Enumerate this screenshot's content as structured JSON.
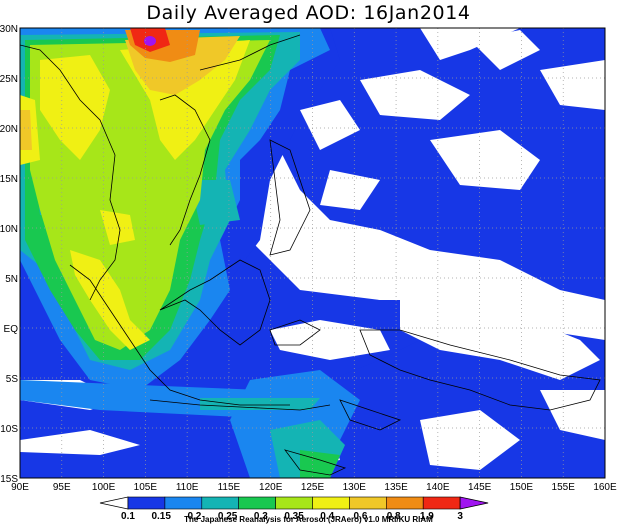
{
  "title": "Daily Averaged AOD: 16Jan2014",
  "credit": "The Japanese Reanalysis for Aerosol (JRAero) v1.0 MRI/KU RIAM",
  "map": {
    "lon_labels": [
      "90E",
      "95E",
      "100E",
      "105E",
      "110E",
      "115E",
      "120E",
      "125E",
      "130E",
      "135E",
      "140E",
      "145E",
      "150E",
      "155E",
      "160E"
    ],
    "lat_labels": [
      "30N",
      "25N",
      "20N",
      "15N",
      "10N",
      "5N",
      "EQ",
      "5S",
      "10S",
      "15S"
    ]
  },
  "colorbar": {
    "labels": [
      "0.1",
      "0.15",
      "0.2",
      "0.25",
      "0.3",
      "0.35",
      "0.4",
      "0.6",
      "0.8",
      "1.9",
      "3"
    ],
    "colors": [
      "#ffffff",
      "#1737e6",
      "#1a86f0",
      "#14b4b4",
      "#19c850",
      "#a7e619",
      "#f0f014",
      "#f0c828",
      "#f08c14",
      "#f02814",
      "#a014f0"
    ]
  }
}
